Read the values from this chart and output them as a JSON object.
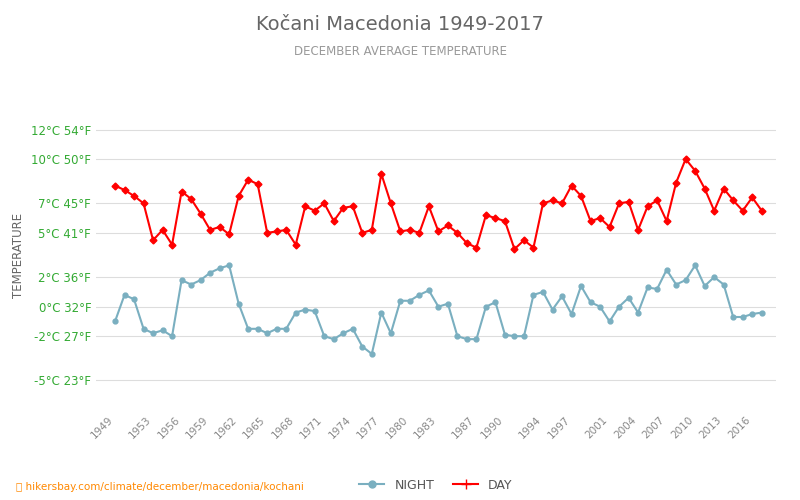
{
  "title": "Kočani Macedonia 1949-2017",
  "subtitle": "DECEMBER AVERAGE TEMPERATURE",
  "ylabel": "TEMPERATURE",
  "bg_color": "#ffffff",
  "grid_color": "#dddddd",
  "y_ticks_celsius": [
    -5,
    -2,
    0,
    2,
    5,
    7,
    10,
    12
  ],
  "y_ticks_fahrenheit": [
    23,
    27,
    32,
    36,
    41,
    45,
    50,
    54
  ],
  "ylim": [
    -7.0,
    14.0
  ],
  "years": [
    1949,
    1950,
    1951,
    1952,
    1953,
    1954,
    1955,
    1956,
    1957,
    1958,
    1959,
    1960,
    1961,
    1962,
    1963,
    1964,
    1965,
    1966,
    1967,
    1968,
    1969,
    1970,
    1971,
    1972,
    1973,
    1974,
    1975,
    1976,
    1977,
    1978,
    1979,
    1980,
    1981,
    1982,
    1983,
    1984,
    1985,
    1986,
    1987,
    1988,
    1989,
    1990,
    1991,
    1992,
    1993,
    1994,
    1995,
    1996,
    1997,
    1998,
    1999,
    2000,
    2001,
    2002,
    2003,
    2004,
    2005,
    2006,
    2007,
    2008,
    2009,
    2010,
    2011,
    2012,
    2013,
    2014,
    2015,
    2016,
    2017
  ],
  "day_temps": [
    8.2,
    7.9,
    7.5,
    7.0,
    4.5,
    5.2,
    4.2,
    7.8,
    7.3,
    6.3,
    5.2,
    5.4,
    4.9,
    7.5,
    8.6,
    8.3,
    5.0,
    5.1,
    5.2,
    4.2,
    6.8,
    6.5,
    7.0,
    5.8,
    6.7,
    6.8,
    5.0,
    5.2,
    9.0,
    7.0,
    5.1,
    5.2,
    5.0,
    6.8,
    5.1,
    5.5,
    5.0,
    4.3,
    4.0,
    6.2,
    6.0,
    5.8,
    3.9,
    4.5,
    4.0,
    7.0,
    7.2,
    7.0,
    8.2,
    7.5,
    5.8,
    6.0,
    5.4,
    7.0,
    7.1,
    5.2,
    6.8,
    7.2,
    5.8,
    8.4,
    10.0,
    9.2,
    8.0,
    6.5,
    8.0,
    7.2,
    6.5,
    7.4,
    6.5
  ],
  "night_temps": [
    -1.0,
    0.8,
    0.5,
    -1.5,
    -1.8,
    -1.6,
    -2.0,
    1.8,
    1.5,
    1.8,
    2.3,
    2.6,
    2.8,
    0.2,
    -1.5,
    -1.5,
    -1.8,
    -1.5,
    -1.5,
    -0.4,
    -0.2,
    -0.3,
    -2.0,
    -2.2,
    -1.8,
    -1.5,
    -2.7,
    -3.2,
    -0.4,
    -1.8,
    0.4,
    0.4,
    0.8,
    1.1,
    0.0,
    0.2,
    -2.0,
    -2.2,
    -2.2,
    -0.0,
    0.3,
    -1.9,
    -2.0,
    -2.0,
    0.8,
    1.0,
    -0.2,
    0.7,
    -0.5,
    1.4,
    0.3,
    0.0,
    -1.0,
    0.0,
    0.6,
    -0.4,
    1.3,
    1.2,
    2.5,
    1.5,
    1.8,
    2.8,
    1.4,
    2.0,
    1.5,
    -0.7,
    -0.7,
    -0.5,
    -0.4
  ],
  "day_color": "#ff0000",
  "night_color": "#7aafc0",
  "day_marker": "D",
  "night_marker": "o",
  "marker_size": 3.5,
  "line_width": 1.5,
  "title_color": "#666666",
  "subtitle_color": "#999999",
  "tick_color_left": "#33aa33",
  "ylabel_color": "#666666",
  "xtick_color": "#888888",
  "x_tick_years": [
    1949,
    1953,
    1956,
    1959,
    1962,
    1965,
    1968,
    1971,
    1974,
    1977,
    1980,
    1983,
    1987,
    1990,
    1994,
    1997,
    2001,
    2004,
    2007,
    2010,
    2013,
    2016
  ],
  "url_color": "#ff8800",
  "url_text": "hikersbay.com/climate/december/macedonia/kochani",
  "pin_color": "#ffcc00"
}
